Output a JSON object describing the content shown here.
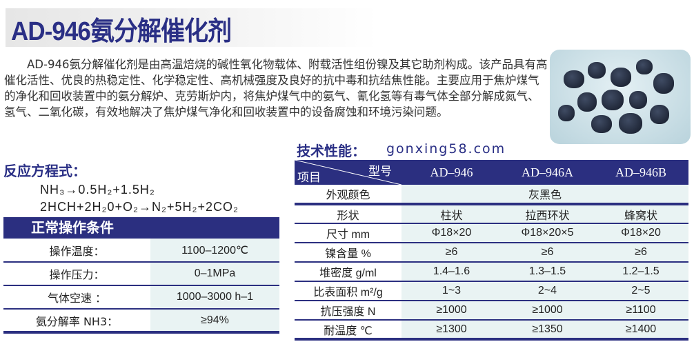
{
  "title": "AD-946氨分解催化剂",
  "intro": "AD-946氨分解催化剂是由高温焙烧的碱性氧化物载体、附载活性组份镍及其它助剂构成。该产品具有高催化活性、优良的热稳定性、化学稳定性、高机械强度及良好的抗中毒和抗结焦性能。主要应用于焦炉煤气的净化和回收装置中的氨分解炉、克劳斯炉内，将焦炉煤气中的氨气、氰化氢等有毒气体全部分解成氮气、氢气、二氧化碳，有效地解决了焦炉煤气净化和回收装置中的设备腐蚀和环境污染问题。",
  "reaction": {
    "heading": "反应方程式：",
    "eq1": "NH₃→0.5H₂+1.5H₂",
    "eq2": "2HCH+2H₂0+O₂→N₂+5H₂+2CO₂"
  },
  "conditions": {
    "heading": "正常操作条件",
    "rows": [
      {
        "label": "操作温度：",
        "value": "1100–1200℃"
      },
      {
        "label": "操作压力：",
        "value": "0–1MPa"
      },
      {
        "label": "气体空速 ：",
        "value": "1000–3000 h–1"
      },
      {
        "label": "氨分解率 NH3：",
        "value": "≥94%"
      }
    ]
  },
  "specs": {
    "heading": "技术性能：",
    "corner_model": "型号",
    "corner_item": "项目",
    "models": [
      "AD–946",
      "AD–946A",
      "AD–946B"
    ],
    "color_label": "外观颜色",
    "color_value": "灰黑色",
    "rows": [
      {
        "label": "形状",
        "values": [
          "柱状",
          "拉西环状",
          "蜂窝状"
        ]
      },
      {
        "label": "尺寸 mm",
        "values": [
          "Φ18×20",
          "Φ18×20×5",
          "Φ18×20"
        ]
      },
      {
        "label": "镍含量 %",
        "values": [
          "≥6",
          "≥6",
          "≥6"
        ]
      },
      {
        "label": "堆密度 g/ml",
        "values": [
          "1.4–1.6",
          "1.3–1.5",
          "1.2–1.5"
        ]
      },
      {
        "label": "比表面积 m²/g",
        "values": [
          "1~3",
          "2~4",
          "2~5"
        ]
      },
      {
        "label": "抗压强度 N",
        "values": [
          "≥1000",
          "≥1000",
          "≥1100"
        ]
      },
      {
        "label": "耐温度 ℃",
        "values": [
          "≥1300",
          "≥1350",
          "≥1400"
        ]
      }
    ]
  },
  "watermark": "gonxing58.com",
  "colors": {
    "brand": "#2b2f80",
    "cell": "#e9f3f3"
  }
}
